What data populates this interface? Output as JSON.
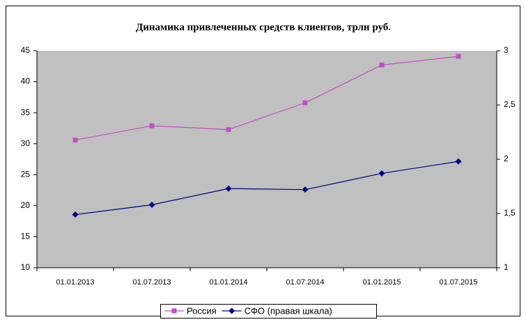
{
  "chart_data": {
    "type": "line",
    "title": "Динамика привлеченных средств клиентов, трлн руб.",
    "categories": [
      "01.01.2013",
      "01.07.2013",
      "01.01.2014",
      "01.07.2014",
      "01.01.2015",
      "01.07.2015"
    ],
    "series": [
      {
        "name": "Россия",
        "color": "#c050c0",
        "marker": "square",
        "values": [
          30.6,
          32.9,
          32.3,
          36.6,
          42.7,
          44.1
        ]
      },
      {
        "name": "СФО (правая шкала)",
        "color": "#000080",
        "marker": "diamond",
        "axis": "y2",
        "values": [
          1.49,
          1.58,
          1.73,
          1.72,
          1.87,
          1.98
        ]
      }
    ],
    "ylim": [
      10,
      45
    ],
    "yticks": [
      10,
      15,
      20,
      25,
      30,
      35,
      40,
      45
    ],
    "y2lim": [
      1,
      3
    ],
    "y2ticks": [
      1,
      {
        "value": 1.5,
        "label": "1,5"
      },
      2,
      {
        "value": 2.5,
        "label": "2,5"
      },
      3
    ],
    "grid": false,
    "legend": "bottom"
  }
}
